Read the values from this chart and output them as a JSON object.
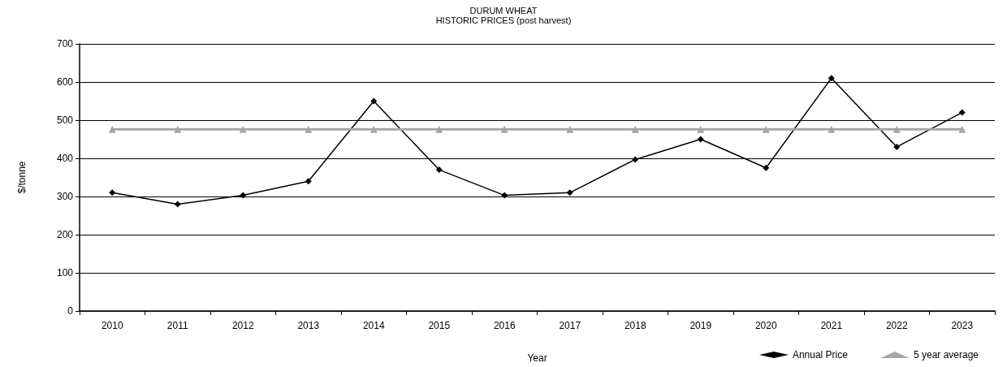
{
  "chart_data": {
    "type": "line",
    "title": "DURUM WHEAT",
    "subtitle": "HISTORIC PRICES (post harvest)",
    "xlabel": "Year",
    "ylabel": "$/tonne",
    "categories": [
      "2010",
      "2011",
      "2012",
      "2013",
      "2014",
      "2015",
      "2016",
      "2017",
      "2018",
      "2019",
      "2020",
      "2021",
      "2022",
      "2023"
    ],
    "series": [
      {
        "name": "Annual Price",
        "color": "#000000",
        "marker": "diamond",
        "values": [
          310,
          280,
          303,
          340,
          550,
          370,
          303,
          310,
          397,
          450,
          375,
          610,
          430,
          520
        ]
      },
      {
        "name": "5 year average",
        "color": "#a6a6a6",
        "marker": "triangle",
        "values": [
          476,
          476,
          476,
          476,
          476,
          476,
          476,
          476,
          476,
          476,
          476,
          476,
          476,
          476
        ]
      }
    ],
    "ylim": [
      0,
      700
    ],
    "yticks": [
      0,
      100,
      200,
      300,
      400,
      500,
      600,
      700
    ],
    "grid": "y",
    "legend": "bottom right",
    "line_style": "solid"
  }
}
